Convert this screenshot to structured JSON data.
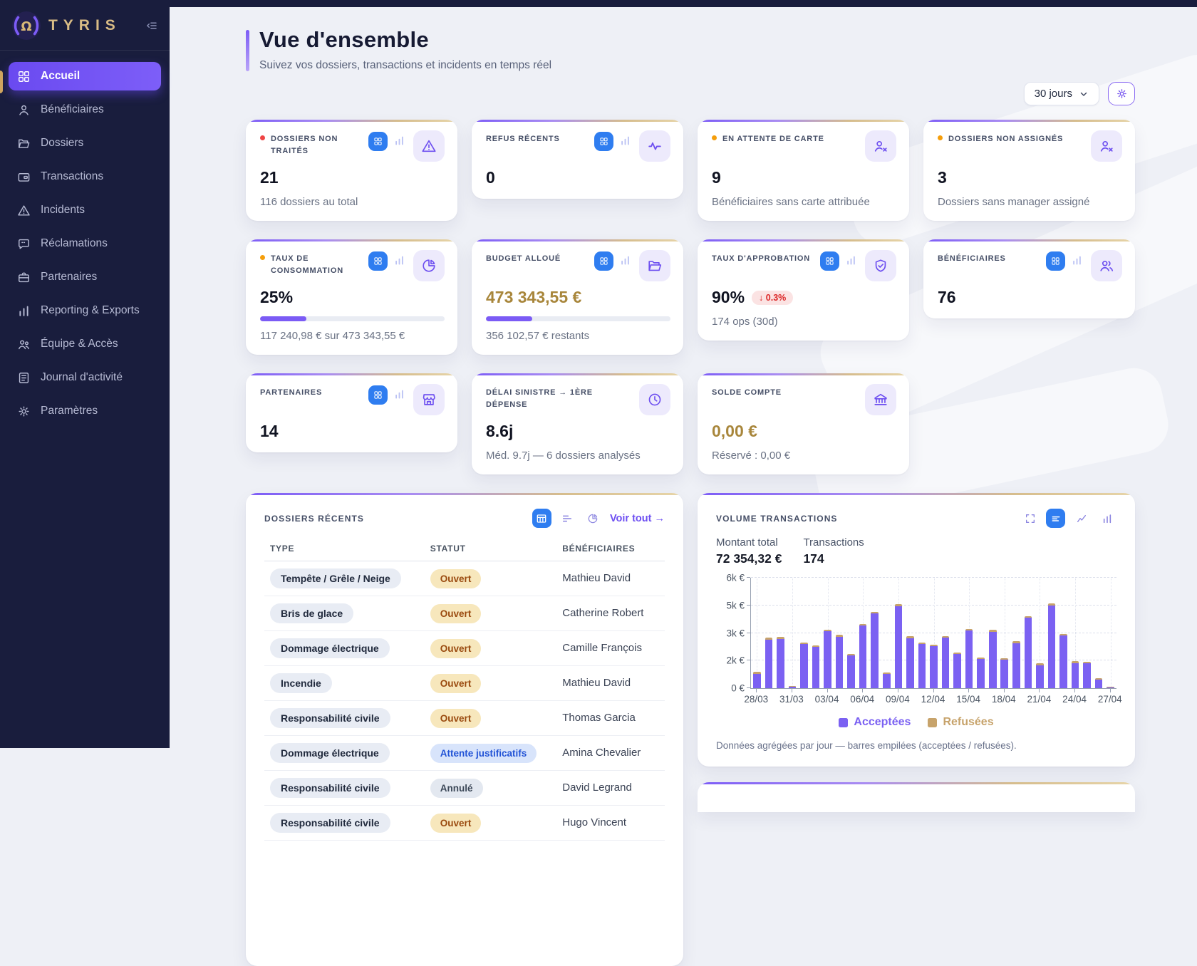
{
  "brand": {
    "name": "TYRIS",
    "logo_icon": "tyris-logo-icon"
  },
  "sidebar": {
    "items": [
      {
        "key": "accueil",
        "label": "Accueil",
        "icon": "grid-icon",
        "active": true
      },
      {
        "key": "beneficiaires",
        "label": "Bénéficiaires",
        "icon": "user-icon"
      },
      {
        "key": "dossiers",
        "label": "Dossiers",
        "icon": "folder-icon"
      },
      {
        "key": "transactions",
        "label": "Transactions",
        "icon": "wallet-icon"
      },
      {
        "key": "incidents",
        "label": "Incidents",
        "icon": "warning-icon"
      },
      {
        "key": "reclamations",
        "label": "Réclamations",
        "icon": "chat-icon"
      },
      {
        "key": "partenaires",
        "label": "Partenaires",
        "icon": "briefcase-icon"
      },
      {
        "key": "reporting-exports",
        "label": "Reporting & Exports",
        "icon": "bar-chart-icon"
      },
      {
        "key": "equipe-acces",
        "label": "Équipe & Accès",
        "icon": "team-icon"
      },
      {
        "key": "journal-activite",
        "label": "Journal d'activité",
        "icon": "journal-icon"
      },
      {
        "key": "parametres",
        "label": "Paramètres",
        "icon": "gear-icon"
      }
    ]
  },
  "header": {
    "title": "Vue d'ensemble",
    "subtitle": "Suivez vos dossiers, transactions et incidents en temps réel",
    "period_selector": "30 jours",
    "settings_icon": "gear-icon"
  },
  "colors": {
    "accent_purple": "#7b5bf5",
    "accent_gold": "#c9a36b",
    "badge_blue": "#2f7df0",
    "danger_red": "#ef4444",
    "warn_amber": "#f59e0b"
  },
  "stat_cards": [
    {
      "key": "dossiers-non-traites",
      "title": "DOSSIERS NON TRAITÉS",
      "dot": "#ef4444",
      "value": "21",
      "subtext": "116 dossiers au total",
      "icon": "warning-triangle-icon",
      "mini_icons": true
    },
    {
      "key": "refus-recents",
      "title": "REFUS RÉCENTS",
      "value": "0",
      "icon": "pulse-icon",
      "mini_icons": true
    },
    {
      "key": "attente-carte",
      "title": "EN ATTENTE DE CARTE",
      "dot": "#f59e0b",
      "value": "9",
      "subtext": "Bénéficiaires sans carte attribuée",
      "icon": "user-x-icon",
      "mini_icons": false
    },
    {
      "key": "dossiers-non-assignes",
      "title": "DOSSIERS NON ASSIGNÉS",
      "dot": "#f59e0b",
      "value": "3",
      "subtext": "Dossiers sans manager assigné",
      "icon": "user-x-icon",
      "mini_icons": false
    },
    {
      "key": "taux-consommation",
      "title": "TAUX DE CONSOMMATION",
      "dot": "#f59e0b",
      "value": "25%",
      "progress": 25,
      "subtext": "117 240,98 € sur 473 343,55 €",
      "icon": "pie-icon",
      "mini_icons": true
    },
    {
      "key": "budget-alloue",
      "title": "BUDGET ALLOUÉ",
      "value": "473 343,55 €",
      "value_color": "gold",
      "progress": 25,
      "subtext": "356 102,57 € restants",
      "icon": "folder-icon",
      "mini_icons": true
    },
    {
      "key": "taux-approbation",
      "title": "TAUX D'APPROBATION",
      "value": "90%",
      "badge": "↓ 0.3%",
      "subtext": "174 ops (30d)",
      "icon": "shield-check-icon",
      "mini_icons": true
    },
    {
      "key": "beneficiaires",
      "title": "BÉNÉFICIAIRES",
      "value": "76",
      "icon": "users-icon",
      "mini_icons": true
    },
    {
      "key": "partenaires",
      "title": "PARTENAIRES",
      "value": "14",
      "icon": "store-icon",
      "mini_icons": true
    },
    {
      "key": "delai-sinistre",
      "title": "DÉLAI SINISTRE → 1ÈRE DÉPENSE",
      "value": "8.6j",
      "subtext": "Méd. 9.7j — 6 dossiers analysés",
      "icon": "clock-icon",
      "mini_icons": false
    },
    {
      "key": "solde-compte",
      "title": "SOLDE COMPTE",
      "value": "0,00 €",
      "value_color": "gold",
      "subtext": "Réservé : 0,00 €",
      "icon": "bank-icon",
      "mini_icons": false
    }
  ],
  "recent_cases": {
    "title": "DOSSIERS RÉCENTS",
    "view_all": "Voir tout →",
    "toolbar": [
      {
        "icon": "table-icon",
        "active": true
      },
      {
        "icon": "list-icon",
        "active": false
      },
      {
        "icon": "pie-icon",
        "active": false
      }
    ],
    "columns": [
      "TYPE",
      "STATUT",
      "BÉNÉFICIAIRES"
    ],
    "rows": [
      {
        "type": "Tempête / Grêle / Neige",
        "status": "Ouvert",
        "status_kind": "open",
        "beneficiary": "Mathieu David"
      },
      {
        "type": "Bris de glace",
        "status": "Ouvert",
        "status_kind": "open",
        "beneficiary": "Catherine Robert"
      },
      {
        "type": "Dommage électrique",
        "status": "Ouvert",
        "status_kind": "open",
        "beneficiary": "Camille François"
      },
      {
        "type": "Incendie",
        "status": "Ouvert",
        "status_kind": "open",
        "beneficiary": "Mathieu David"
      },
      {
        "type": "Responsabilité civile",
        "status": "Ouvert",
        "status_kind": "open",
        "beneficiary": "Thomas Garcia"
      },
      {
        "type": "Dommage électrique",
        "status": "Attente justificatifs",
        "status_kind": "waiting",
        "beneficiary": "Amina Chevalier"
      },
      {
        "type": "Responsabilité civile",
        "status": "Annulé",
        "status_kind": "cancelled",
        "beneficiary": "David Legrand"
      },
      {
        "type": "Responsabilité civile",
        "status": "Ouvert",
        "status_kind": "open",
        "beneficiary": "Hugo Vincent"
      }
    ]
  },
  "transactions_panel": {
    "title": "VOLUME TRANSACTIONS",
    "toolbar": [
      {
        "icon": "expand-icon",
        "active": false
      },
      {
        "icon": "rows-icon",
        "active": true
      },
      {
        "icon": "line-chart-icon",
        "active": false
      },
      {
        "icon": "bars-icon",
        "active": false
      }
    ],
    "stats": [
      {
        "label": "Montant total",
        "value": "72 354,32 €",
        "color": "gold"
      },
      {
        "label": "Transactions",
        "value": "174",
        "color": "dark"
      }
    ],
    "footnote": "Données agrégées par jour — barres empilées (acceptées / refusées)."
  },
  "chart_data": {
    "type": "bar",
    "stacked": true,
    "title": "Volume transactions",
    "x": [
      "28/03",
      "29/03",
      "30/03",
      "31/03",
      "01/04",
      "02/04",
      "03/04",
      "04/04",
      "05/04",
      "06/04",
      "07/04",
      "08/04",
      "09/04",
      "10/04",
      "11/04",
      "12/04",
      "13/04",
      "14/04",
      "15/04",
      "16/04",
      "17/04",
      "18/04",
      "19/04",
      "20/04",
      "21/04",
      "22/04",
      "23/04",
      "24/04",
      "25/04",
      "26/04",
      "27/04"
    ],
    "series": [
      {
        "name": "Acceptées",
        "color": "#7b61f2",
        "values": [
          780,
          2650,
          2680,
          60,
          2400,
          2250,
          3080,
          2800,
          1780,
          3400,
          4050,
          780,
          4450,
          2720,
          2400,
          2270,
          2750,
          1860,
          3120,
          1590,
          3070,
          1530,
          2450,
          3820,
          1250,
          4480,
          2860,
          1370,
          1340,
          480,
          20
        ]
      },
      {
        "name": "Refusées",
        "color": "#c7a36b",
        "values": [
          120,
          90,
          90,
          70,
          80,
          80,
          90,
          90,
          90,
          90,
          100,
          90,
          110,
          90,
          90,
          90,
          90,
          90,
          90,
          90,
          90,
          90,
          90,
          100,
          100,
          120,
          90,
          100,
          100,
          80,
          40
        ]
      }
    ],
    "ylim": [
      0,
      6000
    ],
    "yticks": [
      {
        "v": 0,
        "label": "0 €"
      },
      {
        "v": 1500,
        "label": "2k €"
      },
      {
        "v": 3000,
        "label": "3k €"
      },
      {
        "v": 4500,
        "label": "5k €"
      },
      {
        "v": 6000,
        "label": "6k €"
      }
    ],
    "xtick_every": 3,
    "xtick_labels": [
      "28/03",
      "31/03",
      "03/04",
      "06/04",
      "09/04",
      "12/04",
      "15/04",
      "18/04",
      "21/04",
      "24/04",
      "27/04"
    ],
    "legend": [
      "Acceptées",
      "Refusées"
    ],
    "grid": true,
    "legend_position": "bottom"
  }
}
